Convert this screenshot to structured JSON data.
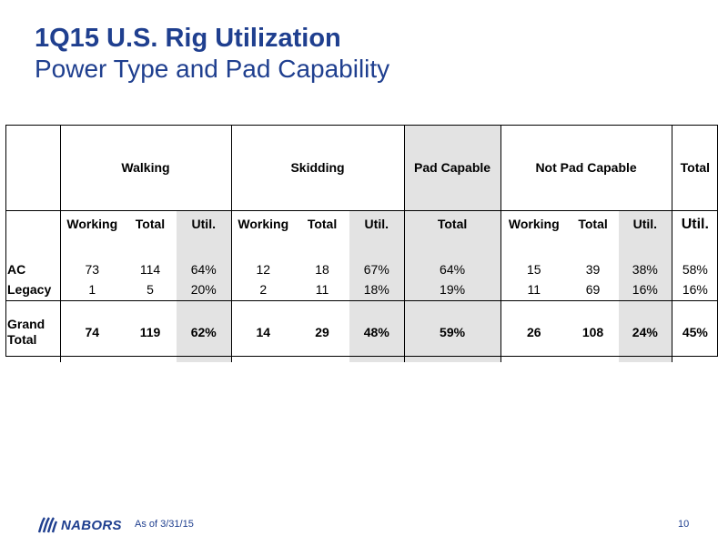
{
  "title": "1Q15 U.S. Rig Utilization",
  "subtitle": "Power Type and Pad Capability",
  "table": {
    "groups": {
      "walking": "Walking",
      "skidding": "Skidding",
      "pad_capable": "Pad Capable",
      "not_pad_capable": "Not Pad Capable",
      "total": "Total"
    },
    "subheaders": [
      "Working",
      "Total",
      "Util.",
      "Working",
      "Total",
      "Util.",
      "Total",
      "Working",
      "Total",
      "Util.",
      "Util."
    ],
    "rows": [
      {
        "label": "AC",
        "cells": [
          "73",
          "114",
          "64%",
          "12",
          "18",
          "67%",
          "64%",
          "15",
          "39",
          "38%",
          "58%"
        ]
      },
      {
        "label": "Legacy",
        "cells": [
          "1",
          "5",
          "20%",
          "2",
          "11",
          "18%",
          "19%",
          "11",
          "69",
          "16%",
          "16%"
        ]
      },
      {
        "label": "Grand Total",
        "cells": [
          "74",
          "119",
          "62%",
          "14",
          "29",
          "48%",
          "59%",
          "26",
          "108",
          "24%",
          "45%"
        ]
      }
    ]
  },
  "footer": {
    "logo_text": "NABORS",
    "as_of": "As of 3/31/15",
    "page_number": "10"
  },
  "colors": {
    "title": "#1f3f8f",
    "shade": "#e3e3e3"
  }
}
